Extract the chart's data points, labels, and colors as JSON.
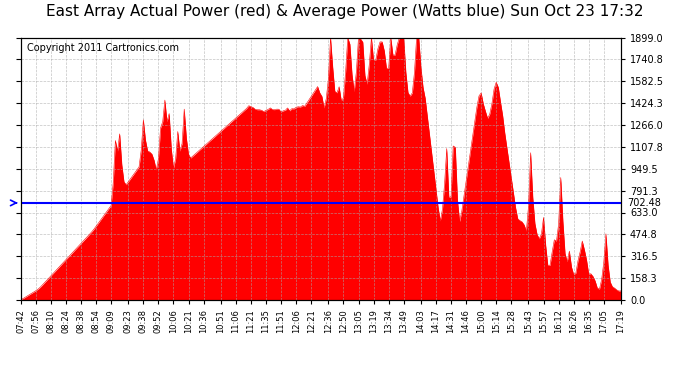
{
  "title": "East Array Actual Power (red) & Average Power (Watts blue) Sun Oct 23 17:32",
  "copyright": "Copyright 2011 Cartronics.com",
  "avg_power": 702.48,
  "ymax": 1899.0,
  "yticks": [
    0.0,
    158.3,
    316.5,
    474.8,
    633.0,
    791.3,
    949.5,
    1107.8,
    1266.0,
    1424.3,
    1582.5,
    1740.8,
    1899.0
  ],
  "background_color": "#ffffff",
  "fill_color": "#ff0000",
  "line_color": "#0000ff",
  "grid_color": "#aaaaaa",
  "title_fontsize": 11,
  "copyright_fontsize": 7,
  "x_labels": [
    "07:42",
    "07:56",
    "08:10",
    "08:24",
    "08:38",
    "08:54",
    "09:09",
    "09:23",
    "09:38",
    "09:52",
    "10:06",
    "10:21",
    "10:36",
    "10:51",
    "11:06",
    "11:21",
    "11:35",
    "11:51",
    "12:06",
    "12:21",
    "12:36",
    "12:50",
    "13:05",
    "13:19",
    "13:34",
    "13:49",
    "14:03",
    "14:17",
    "14:31",
    "14:46",
    "15:00",
    "15:14",
    "15:28",
    "15:43",
    "15:57",
    "16:12",
    "16:26",
    "16:35",
    "17:05",
    "17:19"
  ]
}
